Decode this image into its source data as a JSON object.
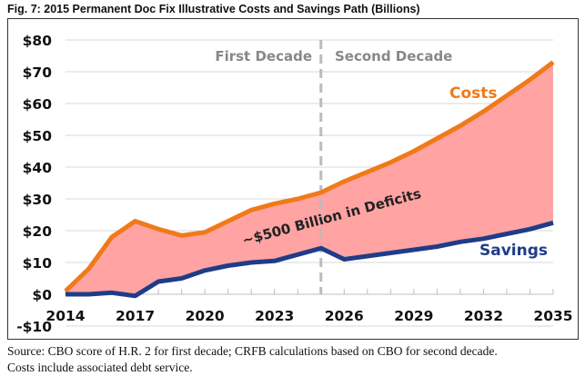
{
  "figure": {
    "title": "Fig. 7: 2015 Permanent Doc Fix Illustrative Costs and Savings Path (Billions)",
    "source_line1": "Source: CBO score of H.R. 2 for first decade; CRFB calculations based on CBO for second decade.",
    "source_line2": "Costs include associated debt service."
  },
  "chart_data": {
    "type": "line",
    "title": "2015 Permanent Doc Fix Illustrative Costs and Savings Path (Billions)",
    "xlabel": "",
    "ylabel": "",
    "x": [
      2014,
      2015,
      2016,
      2017,
      2018,
      2019,
      2020,
      2021,
      2022,
      2023,
      2024,
      2025,
      2026,
      2027,
      2028,
      2029,
      2030,
      2031,
      2032,
      2033,
      2034,
      2035
    ],
    "xticks": [
      "2014",
      "2017",
      "2020",
      "2023",
      "2026",
      "2029",
      "2032",
      "2035"
    ],
    "xtick_values": [
      2014,
      2017,
      2020,
      2023,
      2026,
      2029,
      2032,
      2035
    ],
    "yticks": [
      "-$10",
      "$0",
      "$10",
      "$20",
      "$30",
      "$40",
      "$50",
      "$60",
      "$70",
      "$80"
    ],
    "ytick_values": [
      -10,
      0,
      10,
      20,
      30,
      40,
      50,
      60,
      70,
      80
    ],
    "ylim": [
      -10,
      80
    ],
    "xlim": [
      2014,
      2035
    ],
    "grid": true,
    "series": [
      {
        "name": "Costs",
        "color": "#F07A1A",
        "values": [
          1,
          8,
          18,
          23,
          20.5,
          18.5,
          19.5,
          23,
          26.5,
          28.5,
          30,
          32,
          35.5,
          38.5,
          41.5,
          45,
          49,
          53,
          57.5,
          62.5,
          67.5,
          73
        ]
      },
      {
        "name": "Savings",
        "color": "#1F3C88",
        "values": [
          0,
          0,
          0.5,
          -0.5,
          4,
          5,
          7.5,
          9,
          10,
          10.5,
          12.5,
          14.5,
          11,
          12,
          13,
          14,
          15,
          16.5,
          17.5,
          19,
          20.5,
          22.5
        ]
      }
    ],
    "fill_between": {
      "color": "#FFA3A3",
      "label": "~$500 Billion in Deficits"
    },
    "divider": {
      "x": 2025,
      "style": "dashed",
      "color": "#BBBBBB"
    },
    "annotations": [
      {
        "text": "First Decade",
        "color": "#888888"
      },
      {
        "text": "Second Decade",
        "color": "#888888"
      },
      {
        "text": "Costs",
        "color": "#F07A1A"
      },
      {
        "text": "Savings",
        "color": "#1F3C88"
      },
      {
        "text": "~$500 Billion in Deficits",
        "color": "#222222"
      }
    ],
    "legend": "none"
  }
}
